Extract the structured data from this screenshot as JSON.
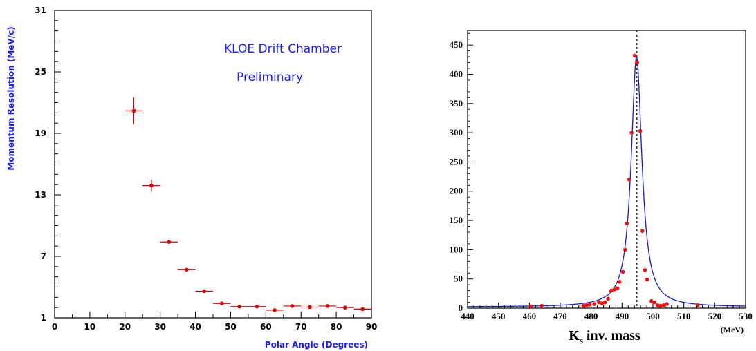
{
  "chart_data": [
    {
      "type": "scatter",
      "xlabel": "Polar Angle (Degrees)",
      "ylabel": "Momentum Resolution (MeV/c)",
      "annotations": [
        "KLOE Drift Chamber",
        "Preliminary"
      ],
      "xlim": [
        0,
        90
      ],
      "ylim": [
        1,
        31
      ],
      "xticks": [
        0,
        10,
        20,
        30,
        40,
        50,
        60,
        70,
        80,
        90
      ],
      "yticks": [
        1,
        7,
        13,
        19,
        25,
        31
      ],
      "series": [
        {
          "color": "#e00000",
          "points": [
            {
              "x": 22.5,
              "y": 21.2,
              "xerr": 2.5,
              "yerr": 1.3
            },
            {
              "x": 27.5,
              "y": 13.9,
              "xerr": 2.5,
              "yerr": 0.6
            },
            {
              "x": 32.5,
              "y": 8.4,
              "xerr": 2.5,
              "yerr": 0.1
            },
            {
              "x": 37.5,
              "y": 5.7,
              "xerr": 2.5,
              "yerr": 0.1
            },
            {
              "x": 42.5,
              "y": 3.6,
              "xerr": 2.5,
              "yerr": 0.1
            },
            {
              "x": 47.5,
              "y": 2.4,
              "xerr": 2.5,
              "yerr": 0.05
            },
            {
              "x": 52.5,
              "y": 2.1,
              "xerr": 2.5,
              "yerr": 0.05
            },
            {
              "x": 57.5,
              "y": 2.1,
              "xerr": 2.5,
              "yerr": 0.05
            },
            {
              "x": 62.5,
              "y": 1.75,
              "xerr": 2.5,
              "yerr": 0.05
            },
            {
              "x": 67.5,
              "y": 2.15,
              "xerr": 2.5,
              "yerr": 0.05
            },
            {
              "x": 72.5,
              "y": 2.05,
              "xerr": 2.5,
              "yerr": 0.05
            },
            {
              "x": 77.5,
              "y": 2.15,
              "xerr": 2.5,
              "yerr": 0.05
            },
            {
              "x": 82.5,
              "y": 2.0,
              "xerr": 2.5,
              "yerr": 0.05
            },
            {
              "x": 87.5,
              "y": 1.85,
              "xerr": 2.5,
              "yerr": 0.05
            }
          ]
        }
      ]
    },
    {
      "type": "scatter",
      "xlabel": "K",
      "xlabel_sub": "s",
      "xlabel_rest": " inv. mass",
      "xunit": "(MeV)",
      "xlim": [
        440,
        530
      ],
      "ylim": [
        0,
        475
      ],
      "xticks": [
        440,
        450,
        460,
        470,
        480,
        490,
        500,
        510,
        520,
        530
      ],
      "yticks": [
        0,
        50,
        100,
        150,
        200,
        250,
        300,
        350,
        400,
        450
      ],
      "reference_line_x": 494.8,
      "fit_color": "#1a1acc",
      "point_color": "#ee1111",
      "histogram_color": "#e88a8a",
      "fit": {
        "peak": 430,
        "mean": 494.7,
        "gamma": 2.1,
        "baseline": 2
      },
      "points": [
        {
          "x": 460.5,
          "y": 3
        },
        {
          "x": 464,
          "y": 4
        },
        {
          "x": 477.5,
          "y": 4
        },
        {
          "x": 478.5,
          "y": 5
        },
        {
          "x": 479.5,
          "y": 6
        },
        {
          "x": 481,
          "y": 7
        },
        {
          "x": 482.5,
          "y": 10
        },
        {
          "x": 483.5,
          "y": 8
        },
        {
          "x": 484.5,
          "y": 10
        },
        {
          "x": 485.5,
          "y": 16
        },
        {
          "x": 486.5,
          "y": 30
        },
        {
          "x": 487.5,
          "y": 32
        },
        {
          "x": 488.5,
          "y": 34
        },
        {
          "x": 489.2,
          "y": 45
        },
        {
          "x": 490.3,
          "y": 62
        },
        {
          "x": 491,
          "y": 100
        },
        {
          "x": 491.6,
          "y": 145
        },
        {
          "x": 492.3,
          "y": 220
        },
        {
          "x": 493.1,
          "y": 300
        },
        {
          "x": 494.1,
          "y": 432
        },
        {
          "x": 494.9,
          "y": 420
        },
        {
          "x": 495.9,
          "y": 303
        },
        {
          "x": 496.6,
          "y": 132
        },
        {
          "x": 497.4,
          "y": 65
        },
        {
          "x": 498.1,
          "y": 49
        },
        {
          "x": 499.5,
          "y": 12
        },
        {
          "x": 500.5,
          "y": 10
        },
        {
          "x": 501.5,
          "y": 5
        },
        {
          "x": 502.5,
          "y": 4
        },
        {
          "x": 503.5,
          "y": 5
        },
        {
          "x": 504.5,
          "y": 7
        },
        {
          "x": 514.5,
          "y": 5
        }
      ]
    }
  ]
}
